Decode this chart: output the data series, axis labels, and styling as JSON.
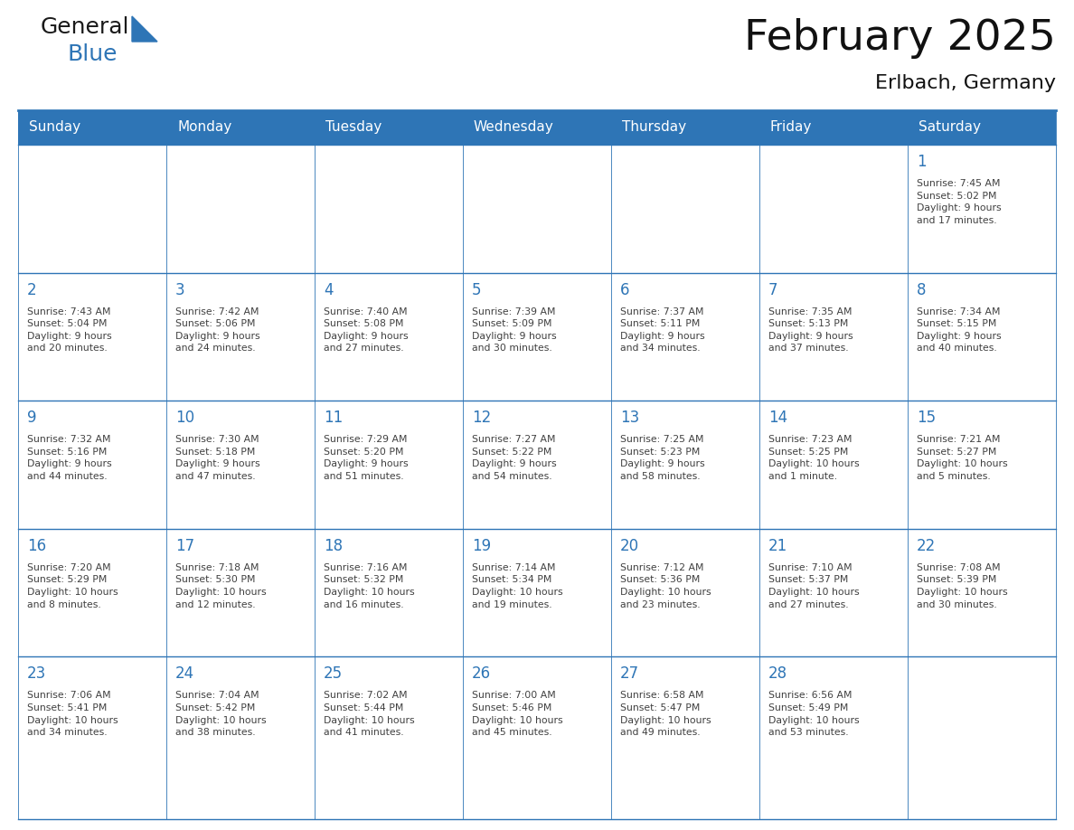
{
  "title": "February 2025",
  "subtitle": "Erlbach, Germany",
  "header_bg": "#2E75B6",
  "header_text_color": "#FFFFFF",
  "cell_bg": "#FFFFFF",
  "day_number_color": "#2E75B6",
  "info_text_color": "#404040",
  "border_color": "#2E75B6",
  "line_color": "#AAAAAA",
  "days_of_week": [
    "Sunday",
    "Monday",
    "Tuesday",
    "Wednesday",
    "Thursday",
    "Friday",
    "Saturday"
  ],
  "weeks": [
    [
      {
        "day": "",
        "info": ""
      },
      {
        "day": "",
        "info": ""
      },
      {
        "day": "",
        "info": ""
      },
      {
        "day": "",
        "info": ""
      },
      {
        "day": "",
        "info": ""
      },
      {
        "day": "",
        "info": ""
      },
      {
        "day": "1",
        "info": "Sunrise: 7:45 AM\nSunset: 5:02 PM\nDaylight: 9 hours\nand 17 minutes."
      }
    ],
    [
      {
        "day": "2",
        "info": "Sunrise: 7:43 AM\nSunset: 5:04 PM\nDaylight: 9 hours\nand 20 minutes."
      },
      {
        "day": "3",
        "info": "Sunrise: 7:42 AM\nSunset: 5:06 PM\nDaylight: 9 hours\nand 24 minutes."
      },
      {
        "day": "4",
        "info": "Sunrise: 7:40 AM\nSunset: 5:08 PM\nDaylight: 9 hours\nand 27 minutes."
      },
      {
        "day": "5",
        "info": "Sunrise: 7:39 AM\nSunset: 5:09 PM\nDaylight: 9 hours\nand 30 minutes."
      },
      {
        "day": "6",
        "info": "Sunrise: 7:37 AM\nSunset: 5:11 PM\nDaylight: 9 hours\nand 34 minutes."
      },
      {
        "day": "7",
        "info": "Sunrise: 7:35 AM\nSunset: 5:13 PM\nDaylight: 9 hours\nand 37 minutes."
      },
      {
        "day": "8",
        "info": "Sunrise: 7:34 AM\nSunset: 5:15 PM\nDaylight: 9 hours\nand 40 minutes."
      }
    ],
    [
      {
        "day": "9",
        "info": "Sunrise: 7:32 AM\nSunset: 5:16 PM\nDaylight: 9 hours\nand 44 minutes."
      },
      {
        "day": "10",
        "info": "Sunrise: 7:30 AM\nSunset: 5:18 PM\nDaylight: 9 hours\nand 47 minutes."
      },
      {
        "day": "11",
        "info": "Sunrise: 7:29 AM\nSunset: 5:20 PM\nDaylight: 9 hours\nand 51 minutes."
      },
      {
        "day": "12",
        "info": "Sunrise: 7:27 AM\nSunset: 5:22 PM\nDaylight: 9 hours\nand 54 minutes."
      },
      {
        "day": "13",
        "info": "Sunrise: 7:25 AM\nSunset: 5:23 PM\nDaylight: 9 hours\nand 58 minutes."
      },
      {
        "day": "14",
        "info": "Sunrise: 7:23 AM\nSunset: 5:25 PM\nDaylight: 10 hours\nand 1 minute."
      },
      {
        "day": "15",
        "info": "Sunrise: 7:21 AM\nSunset: 5:27 PM\nDaylight: 10 hours\nand 5 minutes."
      }
    ],
    [
      {
        "day": "16",
        "info": "Sunrise: 7:20 AM\nSunset: 5:29 PM\nDaylight: 10 hours\nand 8 minutes."
      },
      {
        "day": "17",
        "info": "Sunrise: 7:18 AM\nSunset: 5:30 PM\nDaylight: 10 hours\nand 12 minutes."
      },
      {
        "day": "18",
        "info": "Sunrise: 7:16 AM\nSunset: 5:32 PM\nDaylight: 10 hours\nand 16 minutes."
      },
      {
        "day": "19",
        "info": "Sunrise: 7:14 AM\nSunset: 5:34 PM\nDaylight: 10 hours\nand 19 minutes."
      },
      {
        "day": "20",
        "info": "Sunrise: 7:12 AM\nSunset: 5:36 PM\nDaylight: 10 hours\nand 23 minutes."
      },
      {
        "day": "21",
        "info": "Sunrise: 7:10 AM\nSunset: 5:37 PM\nDaylight: 10 hours\nand 27 minutes."
      },
      {
        "day": "22",
        "info": "Sunrise: 7:08 AM\nSunset: 5:39 PM\nDaylight: 10 hours\nand 30 minutes."
      }
    ],
    [
      {
        "day": "23",
        "info": "Sunrise: 7:06 AM\nSunset: 5:41 PM\nDaylight: 10 hours\nand 34 minutes."
      },
      {
        "day": "24",
        "info": "Sunrise: 7:04 AM\nSunset: 5:42 PM\nDaylight: 10 hours\nand 38 minutes."
      },
      {
        "day": "25",
        "info": "Sunrise: 7:02 AM\nSunset: 5:44 PM\nDaylight: 10 hours\nand 41 minutes."
      },
      {
        "day": "26",
        "info": "Sunrise: 7:00 AM\nSunset: 5:46 PM\nDaylight: 10 hours\nand 45 minutes."
      },
      {
        "day": "27",
        "info": "Sunrise: 6:58 AM\nSunset: 5:47 PM\nDaylight: 10 hours\nand 49 minutes."
      },
      {
        "day": "28",
        "info": "Sunrise: 6:56 AM\nSunset: 5:49 PM\nDaylight: 10 hours\nand 53 minutes."
      },
      {
        "day": "",
        "info": ""
      }
    ]
  ],
  "logo_text1": "General",
  "logo_text2": "Blue",
  "logo_text1_color": "#1a1a1a",
  "logo_text2_color": "#2E75B6",
  "logo_triangle_color": "#2E75B6",
  "fig_width": 11.88,
  "fig_height": 9.18,
  "dpi": 100
}
